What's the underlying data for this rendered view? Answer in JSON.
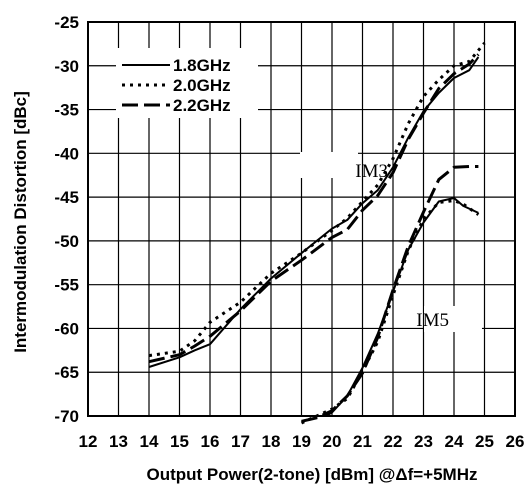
{
  "chart_data": {
    "type": "line",
    "title": "",
    "xlabel": "Output Power(2-tone) [dBm] @Δf=+5MHz",
    "ylabel": "Intermodulation Distortion [dBc]",
    "xlim": [
      12,
      26
    ],
    "ylim": [
      -70,
      -25
    ],
    "xticks": [
      "12",
      "13",
      "14",
      "15",
      "16",
      "17",
      "18",
      "19",
      "20",
      "21",
      "22",
      "23",
      "24",
      "25",
      "26"
    ],
    "yticks": [
      "-25",
      "-30",
      "-35",
      "-40",
      "-45",
      "-50",
      "-55",
      "-60",
      "-65",
      "-70"
    ],
    "grid": true,
    "legend": {
      "placement": "top-left",
      "entries": [
        "1.8GHz",
        "2.0GHz",
        "2.2GHz"
      ]
    },
    "annotations": [
      {
        "text": "IM3",
        "x": 21.3,
        "y": -42.7
      },
      {
        "text": "IM5",
        "x": 23.3,
        "y": -59.7
      }
    ],
    "series": [
      {
        "name": "1.8GHz",
        "group": "IM3",
        "style": "solid",
        "x": [
          14,
          15,
          15.5,
          16,
          17,
          18,
          19,
          20,
          20.5,
          21,
          21.5,
          22,
          22.5,
          23,
          23.5,
          24,
          24.5,
          24.8
        ],
        "y": [
          -64.4,
          -63.3,
          -62.5,
          -61.8,
          -57.8,
          -54.3,
          -51.4,
          -48.6,
          -47.6,
          -45.7,
          -44.2,
          -41.6,
          -38.2,
          -35.2,
          -33.1,
          -31.4,
          -30.5,
          -29.0
        ]
      },
      {
        "name": "2.0GHz",
        "group": "IM3",
        "style": "dotted",
        "x": [
          14,
          15,
          15.5,
          16,
          17,
          18,
          19,
          20,
          20.5,
          21,
          21.5,
          22,
          22.5,
          23,
          23.5,
          24,
          24.5,
          25
        ],
        "y": [
          -63.1,
          -62.6,
          -61.4,
          -59.3,
          -57.0,
          -53.7,
          -51.4,
          -48.8,
          -47.4,
          -45.5,
          -43.6,
          -40.6,
          -36.6,
          -33.5,
          -31.6,
          -30.0,
          -29.5,
          -27.4
        ]
      },
      {
        "name": "2.2GHz",
        "group": "IM3",
        "style": "dashed",
        "x": [
          14,
          15,
          15.5,
          16,
          17,
          18,
          19,
          20,
          20.5,
          21,
          21.5,
          22,
          22.5,
          23,
          23.5,
          24,
          24.5,
          24.8
        ],
        "y": [
          -63.8,
          -63.0,
          -62.0,
          -60.9,
          -58.0,
          -54.6,
          -52.2,
          -49.6,
          -48.7,
          -46.5,
          -44.8,
          -42.2,
          -38.4,
          -35.4,
          -32.6,
          -30.9,
          -29.8,
          -28.7
        ]
      },
      {
        "name": "1.8GHz",
        "group": "IM5",
        "style": "solid",
        "x": [
          19.8,
          20,
          20.5,
          21,
          21.5,
          22,
          22.5,
          23,
          23.5,
          24,
          24.3,
          24.8
        ],
        "y": [
          -70.0,
          -69.6,
          -67.7,
          -64.5,
          -60.6,
          -55.8,
          -51.0,
          -47.9,
          -45.5,
          -45.1,
          -46.0,
          -46.8
        ]
      },
      {
        "name": "2.0GHz",
        "group": "IM5",
        "style": "dotted",
        "x": [
          19,
          19.5,
          20,
          20.5,
          21,
          21.5,
          22,
          22.5,
          23,
          23.5,
          24,
          24.3,
          24.8
        ],
        "y": [
          -70.8,
          -70.0,
          -69.2,
          -68.0,
          -64.9,
          -61.5,
          -56.2,
          -51.1,
          -47.5,
          -45.6,
          -45.4,
          -45.8,
          -47.0
        ]
      },
      {
        "name": "2.2GHz",
        "group": "IM5",
        "style": "dashed",
        "x": [
          19,
          19.5,
          20,
          20.5,
          21,
          21.5,
          22,
          22.5,
          23,
          23.5,
          24,
          24.5,
          24.8
        ],
        "y": [
          -70.6,
          -70.2,
          -69.4,
          -67.7,
          -65.1,
          -61.0,
          -55.6,
          -50.6,
          -46.7,
          -43.0,
          -41.6,
          -41.5,
          -41.5
        ]
      }
    ]
  }
}
